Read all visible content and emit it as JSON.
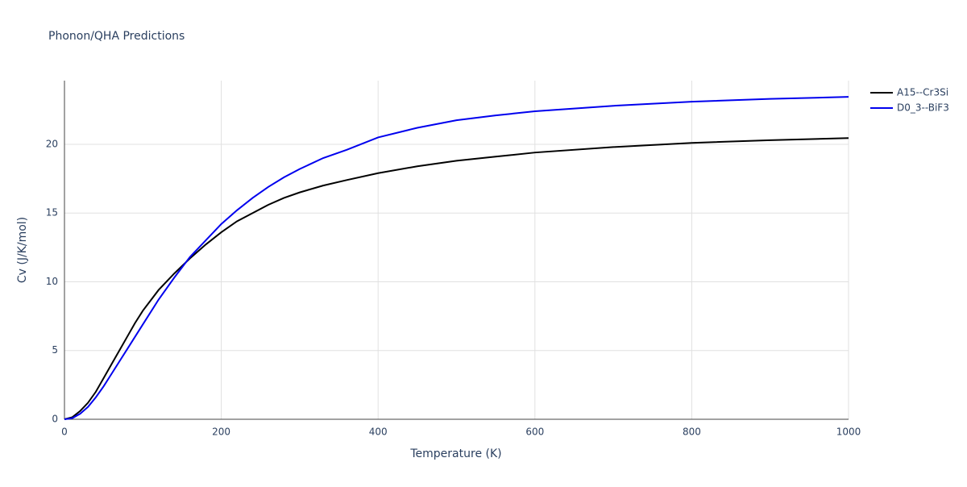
{
  "chart_data": {
    "type": "line",
    "title": "Phonon/QHA Predictions",
    "x_label": "Temperature (K)",
    "y_label": "Cv (J/K/mol)",
    "x": [
      0,
      10,
      20,
      30,
      40,
      50,
      60,
      70,
      80,
      90,
      100,
      120,
      140,
      160,
      180,
      200,
      220,
      240,
      260,
      280,
      300,
      330,
      360,
      400,
      450,
      500,
      550,
      600,
      700,
      800,
      900,
      1000
    ],
    "series": [
      {
        "name": "A15--Cr3Si",
        "color": "#000000",
        "values": [
          0,
          0.15,
          0.6,
          1.2,
          2.0,
          3.0,
          4.0,
          5.0,
          6.0,
          7.0,
          7.9,
          9.4,
          10.6,
          11.7,
          12.7,
          13.6,
          14.4,
          15.0,
          15.6,
          16.1,
          16.5,
          17.0,
          17.4,
          17.9,
          18.4,
          18.8,
          19.1,
          19.4,
          19.8,
          20.1,
          20.3,
          20.45
        ]
      },
      {
        "name": "D0_3--BiF3",
        "color": "#0000ee",
        "values": [
          0,
          0.08,
          0.4,
          0.9,
          1.6,
          2.4,
          3.3,
          4.2,
          5.1,
          6.0,
          6.9,
          8.7,
          10.3,
          11.8,
          13.0,
          14.2,
          15.2,
          16.1,
          16.9,
          17.6,
          18.2,
          19.0,
          19.6,
          20.5,
          21.2,
          21.75,
          22.1,
          22.4,
          22.8,
          23.1,
          23.3,
          23.45
        ]
      }
    ],
    "xlim": [
      0,
      1000
    ],
    "xticks": [
      0,
      200,
      400,
      600,
      800,
      1000
    ],
    "ylim": [
      0,
      24.63
    ],
    "yticks": [
      0,
      5,
      10,
      15,
      20
    ],
    "grid": true,
    "legend": "top-right"
  }
}
